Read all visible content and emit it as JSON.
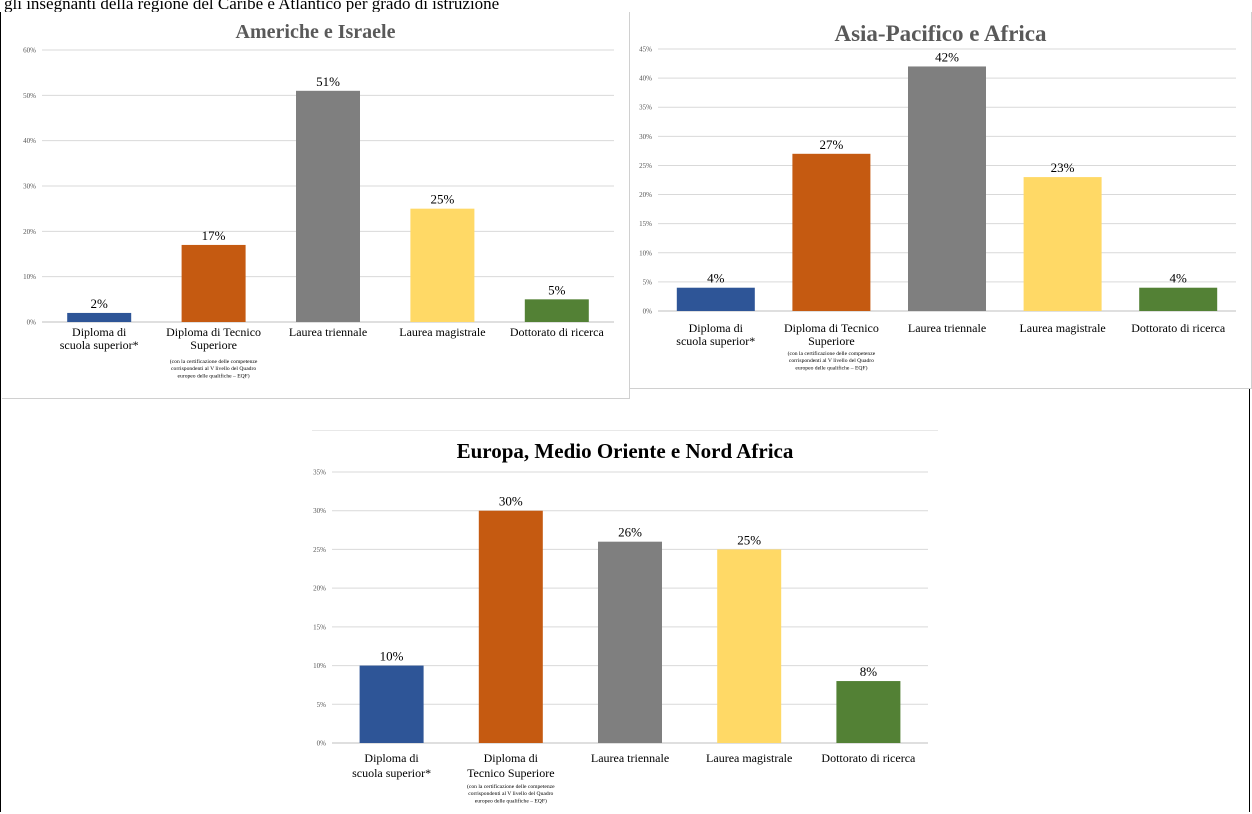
{
  "caption": "gli insegnanti della regione del Caribe e Atlantico per grado di istruzione",
  "colors": [
    "#2e5597",
    "#c55a11",
    "#7f7f7f",
    "#ffd966",
    "#538135"
  ],
  "chart_data": [
    {
      "id": "americhe",
      "type": "bar",
      "title": "Americhe e Israele",
      "categories": [
        [
          "Diploma di",
          "scuola superior*"
        ],
        [
          "Diploma di Tecnico",
          "Superiore"
        ],
        [
          "Laurea triennale"
        ],
        [
          "Laurea magistrale"
        ],
        [
          "Dottorato di ricerca"
        ]
      ],
      "note": [
        "(con la certificazione delle competenze",
        "corrispondenti al V livello del Quadro",
        "europeo delle qualifiche – EQF)"
      ],
      "values": [
        2,
        17,
        51,
        25,
        5
      ],
      "data_labels": [
        "2%",
        "17%",
        "51%",
        "25%",
        "5%"
      ],
      "ylim": [
        0,
        60
      ],
      "yticks": [
        "0%",
        "10%",
        "20%",
        "30%",
        "40%",
        "50%",
        "60%"
      ],
      "grid": true
    },
    {
      "id": "asia",
      "type": "bar",
      "title": "Asia-Pacifico e Africa",
      "categories": [
        [
          "Diploma di",
          "scuola superior*"
        ],
        [
          "Diploma di Tecnico",
          "Superiore"
        ],
        [
          "Laurea triennale"
        ],
        [
          "Laurea magistrale"
        ],
        [
          "Dottorato di ricerca"
        ]
      ],
      "note": [
        "(con la certificazione delle competenze",
        "corrispondenti al V livello del Quadro",
        "europeo delle qualifiche – EQF)"
      ],
      "values": [
        4,
        27,
        42,
        23,
        4
      ],
      "data_labels": [
        "4%",
        "27%",
        "42%",
        "23%",
        "4%"
      ],
      "ylim": [
        0,
        45
      ],
      "yticks": [
        "0%",
        "5%",
        "10%",
        "15%",
        "20%",
        "25%",
        "30%",
        "35%",
        "40%",
        "45%"
      ],
      "grid": true
    },
    {
      "id": "europa",
      "type": "bar",
      "title": "Europa, Medio Oriente e Nord Africa",
      "categories": [
        [
          "Diploma di",
          "scuola superior*"
        ],
        [
          "Diploma di",
          "Tecnico Superiore"
        ],
        [
          "Laurea triennale"
        ],
        [
          "Laurea magistrale"
        ],
        [
          "Dottorato di ricerca"
        ]
      ],
      "note": [
        "(con la certificazione delle competenze",
        "corrispondenti al V livello del Quadro",
        "europeo delle qualifiche – EQF)"
      ],
      "values": [
        10,
        30,
        26,
        25,
        8
      ],
      "data_labels": [
        "10%",
        "30%",
        "26%",
        "25%",
        "8%"
      ],
      "ylim": [
        0,
        35
      ],
      "yticks": [
        "0%",
        "5%",
        "10%",
        "15%",
        "20%",
        "25%",
        "30%",
        "35%"
      ],
      "grid": true
    }
  ]
}
